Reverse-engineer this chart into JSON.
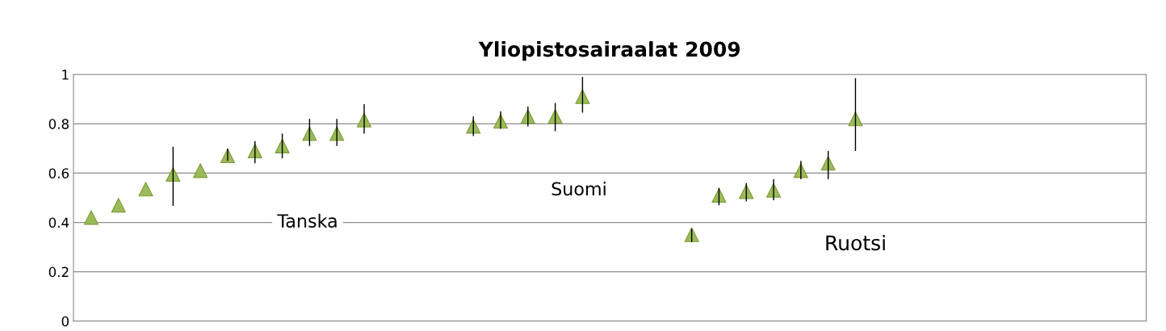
{
  "chart_data": {
    "type": "scatter",
    "title": "Yliopistosairaalat 2009",
    "categories": [
      null,
      null,
      null,
      null,
      null,
      null,
      null,
      null,
      null,
      null,
      null,
      null,
      null,
      null,
      null,
      null,
      null,
      null,
      null,
      null,
      null,
      null,
      null,
      null,
      null,
      null,
      null,
      null,
      null,
      null,
      null,
      null,
      null,
      null,
      null,
      null,
      null,
      null,
      null
    ],
    "series": [
      {
        "color": "#9bbb59",
        "values": [
          0.42,
          0.47,
          0.535,
          0.595,
          0.61,
          0.67,
          0.69,
          0.71,
          0.76,
          0.76,
          0.815,
          null,
          null,
          null,
          0.79,
          0.81,
          0.83,
          0.83,
          0.91,
          null,
          null,
          null,
          0.35,
          0.51,
          0.525,
          0.53,
          0.61,
          0.64,
          0.82,
          null,
          null,
          null,
          null,
          null,
          null,
          null,
          null,
          null,
          null
        ],
        "errors": [
          null,
          null,
          null,
          [
            0.467,
            0.707
          ],
          null,
          [
            0.65,
            0.7
          ],
          [
            0.64,
            0.73
          ],
          [
            0.66,
            0.76
          ],
          [
            0.71,
            0.82
          ],
          [
            0.71,
            0.82
          ],
          [
            0.76,
            0.88
          ],
          null,
          null,
          null,
          [
            0.75,
            0.83
          ],
          [
            0.78,
            0.85
          ],
          [
            0.79,
            0.87
          ],
          [
            0.77,
            0.885
          ],
          [
            0.845,
            0.99
          ],
          null,
          null,
          null,
          [
            0.32,
            0.375
          ],
          [
            0.47,
            0.54
          ],
          [
            0.485,
            0.56
          ],
          [
            0.49,
            0.575
          ],
          [
            0.575,
            0.65
          ],
          [
            0.575,
            0.69
          ],
          [
            0.69,
            0.985
          ],
          null,
          null,
          null,
          null,
          null,
          null,
          null,
          null,
          null,
          null
        ]
      }
    ],
    "annotations": [
      "Tanska",
      "Suomi",
      "Ruotsi"
    ],
    "ylim": [
      0,
      1
    ],
    "yticks": [
      0,
      0.2,
      0.4,
      0.6,
      0.8,
      1
    ],
    "grid": "y",
    "legend": false,
    "marker": "triangle",
    "tick_labels": "y"
  }
}
